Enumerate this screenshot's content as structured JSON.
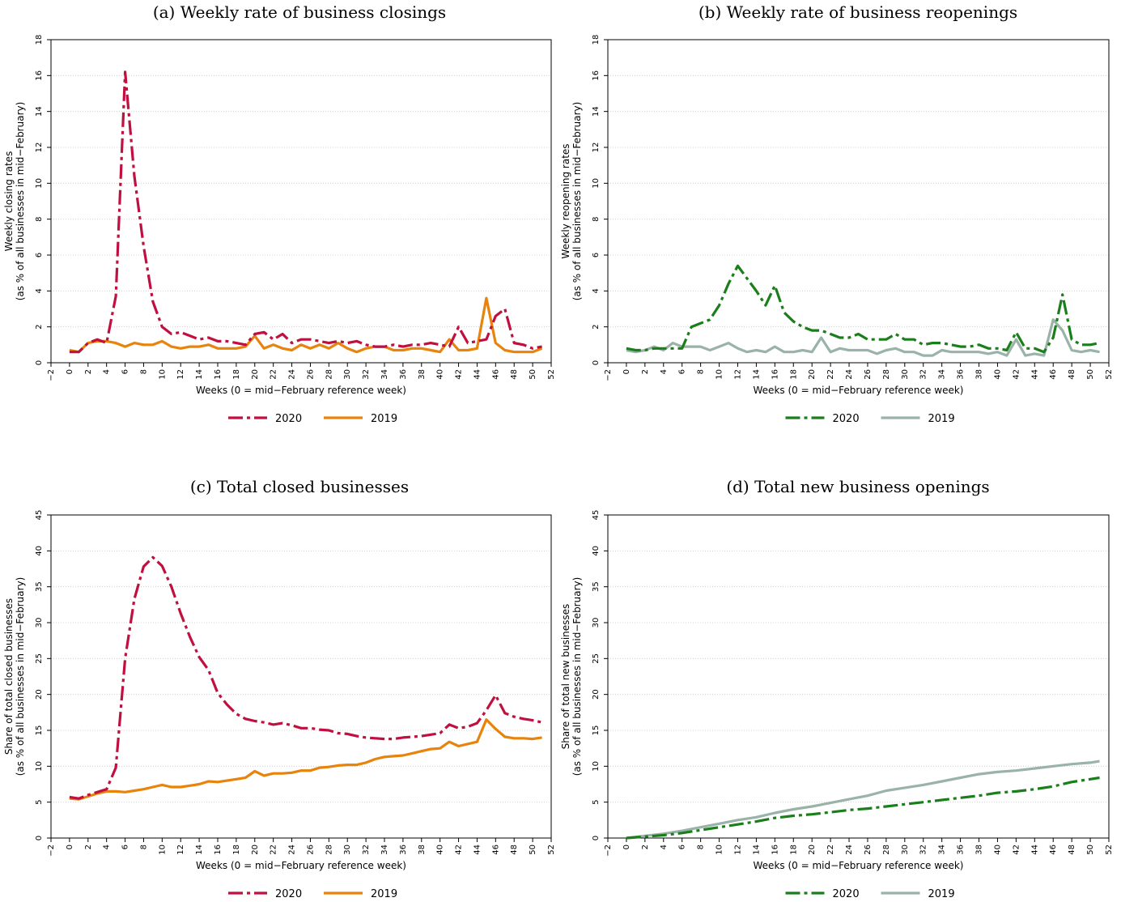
{
  "chart_data": [
    {
      "type": "line",
      "title": "(a) Weekly rate of business closings",
      "xlabel": "Weeks (0 = mid−February reference week)",
      "ylabel": [
        "Weekly closing rates",
        "(as % of all businesses in mid−February)"
      ],
      "xlim": [
        -2,
        52
      ],
      "ylim": [
        0,
        18
      ],
      "xticks": [
        -2,
        0,
        2,
        4,
        6,
        8,
        10,
        12,
        14,
        16,
        18,
        20,
        22,
        24,
        26,
        28,
        30,
        32,
        34,
        36,
        38,
        40,
        42,
        44,
        46,
        48,
        50,
        52
      ],
      "yticks": [
        0,
        2,
        4,
        6,
        8,
        10,
        12,
        14,
        16,
        18
      ],
      "grid": "horizontal dotted",
      "legend": "bottom",
      "series": [
        {
          "name": "2020",
          "color": "#c0103f",
          "dash": "longdash-dot",
          "x": [
            0,
            1,
            2,
            3,
            4,
            5,
            6,
            7,
            8,
            9,
            10,
            11,
            12,
            13,
            14,
            15,
            16,
            17,
            18,
            19,
            20,
            21,
            22,
            23,
            24,
            25,
            26,
            27,
            28,
            29,
            30,
            31,
            32,
            33,
            34,
            35,
            36,
            37,
            38,
            39,
            40,
            41,
            42,
            43,
            44,
            45,
            46,
            47,
            48,
            49,
            50,
            51
          ],
          "y": [
            0.6,
            0.6,
            1.1,
            1.3,
            1.1,
            3.7,
            16.2,
            10.4,
            6.5,
            3.4,
            2.0,
            1.6,
            1.7,
            1.5,
            1.3,
            1.4,
            1.2,
            1.2,
            1.1,
            1.0,
            1.6,
            1.7,
            1.3,
            1.6,
            1.1,
            1.3,
            1.3,
            1.2,
            1.1,
            1.2,
            1.1,
            1.2,
            1.0,
            0.9,
            0.9,
            1.0,
            0.9,
            1.0,
            1.0,
            1.1,
            1.0,
            0.9,
            2.0,
            1.1,
            1.2,
            1.3,
            2.6,
            3.0,
            1.1,
            1.0,
            0.8,
            0.9
          ]
        },
        {
          "name": "2019",
          "color": "#e8830c",
          "dash": "solid",
          "x": [
            0,
            1,
            2,
            3,
            4,
            5,
            6,
            7,
            8,
            9,
            10,
            11,
            12,
            13,
            14,
            15,
            16,
            17,
            18,
            19,
            20,
            21,
            22,
            23,
            24,
            25,
            26,
            27,
            28,
            29,
            30,
            31,
            32,
            33,
            34,
            35,
            36,
            37,
            38,
            39,
            40,
            41,
            42,
            43,
            44,
            45,
            46,
            47,
            48,
            49,
            50,
            51
          ],
          "y": [
            0.7,
            0.6,
            1.1,
            1.2,
            1.2,
            1.1,
            0.9,
            1.1,
            1.0,
            1.0,
            1.2,
            0.9,
            0.8,
            0.9,
            0.9,
            1.0,
            0.8,
            0.8,
            0.8,
            0.9,
            1.5,
            0.8,
            1.0,
            0.8,
            0.7,
            1.0,
            0.8,
            1.0,
            0.8,
            1.1,
            0.8,
            0.6,
            0.8,
            0.9,
            0.9,
            0.7,
            0.7,
            0.8,
            0.8,
            0.7,
            0.6,
            1.3,
            0.7,
            0.7,
            0.8,
            3.6,
            1.1,
            0.7,
            0.6,
            0.6,
            0.6,
            0.8
          ]
        }
      ]
    },
    {
      "type": "line",
      "title": "(b) Weekly rate of business reopenings",
      "xlabel": "Weeks (0 = mid−February reference week)",
      "ylabel": [
        "Weekly reopening rates",
        "(as % of all businesses in mid−February)"
      ],
      "xlim": [
        -2,
        52
      ],
      "ylim": [
        0,
        18
      ],
      "xticks": [
        -2,
        0,
        2,
        4,
        6,
        8,
        10,
        12,
        14,
        16,
        18,
        20,
        22,
        24,
        26,
        28,
        30,
        32,
        34,
        36,
        38,
        40,
        42,
        44,
        46,
        48,
        50,
        52
      ],
      "yticks": [
        0,
        2,
        4,
        6,
        8,
        10,
        12,
        14,
        16,
        18
      ],
      "grid": "horizontal dotted",
      "legend": "bottom",
      "series": [
        {
          "name": "2020",
          "color": "#1a7f1a",
          "dash": "longdash-dot",
          "x": [
            0,
            1,
            2,
            3,
            4,
            5,
            6,
            7,
            8,
            9,
            10,
            11,
            12,
            13,
            14,
            15,
            16,
            17,
            18,
            19,
            20,
            21,
            22,
            23,
            24,
            25,
            26,
            27,
            28,
            29,
            30,
            31,
            32,
            33,
            34,
            35,
            36,
            37,
            38,
            39,
            40,
            41,
            42,
            43,
            44,
            45,
            46,
            47,
            48,
            49,
            50,
            51
          ],
          "y": [
            0.8,
            0.7,
            0.7,
            0.8,
            0.8,
            0.8,
            0.8,
            2.0,
            2.2,
            2.4,
            3.2,
            4.4,
            5.4,
            4.7,
            4.0,
            3.2,
            4.3,
            2.8,
            2.3,
            2.0,
            1.8,
            1.8,
            1.6,
            1.4,
            1.4,
            1.6,
            1.3,
            1.3,
            1.3,
            1.6,
            1.3,
            1.3,
            1.0,
            1.1,
            1.1,
            1.0,
            0.9,
            0.9,
            1.0,
            0.8,
            0.8,
            0.7,
            1.7,
            0.8,
            0.8,
            0.6,
            1.4,
            3.8,
            1.3,
            1.0,
            1.0,
            1.1
          ]
        },
        {
          "name": "2019",
          "color": "#9ab3a8",
          "dash": "solid",
          "x": [
            0,
            1,
            2,
            3,
            4,
            5,
            6,
            7,
            8,
            9,
            10,
            11,
            12,
            13,
            14,
            15,
            16,
            17,
            18,
            19,
            20,
            21,
            22,
            23,
            24,
            25,
            26,
            27,
            28,
            29,
            30,
            31,
            32,
            33,
            34,
            35,
            36,
            37,
            38,
            39,
            40,
            41,
            42,
            43,
            44,
            45,
            46,
            47,
            48,
            49,
            50,
            51
          ],
          "y": [
            0.7,
            0.6,
            0.7,
            0.9,
            0.7,
            1.1,
            0.9,
            0.9,
            0.9,
            0.7,
            0.9,
            1.1,
            0.8,
            0.6,
            0.7,
            0.6,
            0.9,
            0.6,
            0.6,
            0.7,
            0.6,
            1.4,
            0.6,
            0.8,
            0.7,
            0.7,
            0.7,
            0.5,
            0.7,
            0.8,
            0.6,
            0.6,
            0.4,
            0.4,
            0.7,
            0.6,
            0.6,
            0.6,
            0.6,
            0.5,
            0.6,
            0.4,
            1.3,
            0.4,
            0.5,
            0.4,
            2.4,
            1.8,
            0.7,
            0.6,
            0.7,
            0.6
          ]
        }
      ]
    },
    {
      "type": "line",
      "title": "(c) Total closed businesses",
      "xlabel": "Weeks (0 = mid−February reference week)",
      "ylabel": [
        "Share of total closed businesses",
        "(as % of all businesses in mid−February)"
      ],
      "xlim": [
        -2,
        52
      ],
      "ylim": [
        0,
        45
      ],
      "xticks": [
        -2,
        0,
        2,
        4,
        6,
        8,
        10,
        12,
        14,
        16,
        18,
        20,
        22,
        24,
        26,
        28,
        30,
        32,
        34,
        36,
        38,
        40,
        42,
        44,
        46,
        48,
        50,
        52
      ],
      "yticks": [
        0,
        5,
        10,
        15,
        20,
        25,
        30,
        35,
        40,
        45
      ],
      "grid": "horizontal dotted",
      "legend": "bottom",
      "series": [
        {
          "name": "2020",
          "color": "#c0103f",
          "dash": "longdash-dot",
          "x": [
            0,
            1,
            2,
            3,
            4,
            5,
            6,
            7,
            8,
            9,
            10,
            11,
            12,
            13,
            14,
            15,
            16,
            17,
            18,
            19,
            20,
            21,
            22,
            23,
            24,
            25,
            26,
            27,
            28,
            29,
            30,
            31,
            32,
            33,
            34,
            35,
            36,
            37,
            38,
            39,
            40,
            41,
            42,
            43,
            44,
            45,
            46,
            47,
            48,
            49,
            50,
            51
          ],
          "y": [
            5.7,
            5.5,
            6.0,
            6.4,
            6.8,
            9.8,
            25.0,
            33.3,
            37.8,
            39.1,
            37.9,
            35.0,
            31.3,
            28.0,
            25.2,
            23.4,
            20.2,
            18.6,
            17.3,
            16.6,
            16.3,
            16.1,
            15.8,
            16.0,
            15.7,
            15.3,
            15.3,
            15.1,
            15.0,
            14.6,
            14.5,
            14.2,
            14.0,
            13.9,
            13.8,
            13.8,
            14.0,
            14.1,
            14.2,
            14.4,
            14.6,
            15.8,
            15.3,
            15.5,
            16.0,
            17.8,
            19.9,
            17.4,
            16.9,
            16.6,
            16.4,
            16.1
          ]
        },
        {
          "name": "2019",
          "color": "#e8830c",
          "dash": "solid",
          "x": [
            0,
            1,
            2,
            3,
            4,
            5,
            6,
            7,
            8,
            9,
            10,
            11,
            12,
            13,
            14,
            15,
            16,
            17,
            18,
            19,
            20,
            21,
            22,
            23,
            24,
            25,
            26,
            27,
            28,
            29,
            30,
            31,
            32,
            33,
            34,
            35,
            36,
            37,
            38,
            39,
            40,
            41,
            42,
            43,
            44,
            45,
            46,
            47,
            48,
            49,
            50,
            51
          ],
          "y": [
            5.5,
            5.4,
            5.8,
            6.2,
            6.5,
            6.5,
            6.4,
            6.6,
            6.8,
            7.1,
            7.4,
            7.1,
            7.1,
            7.3,
            7.5,
            7.9,
            7.8,
            8.0,
            8.2,
            8.4,
            9.3,
            8.7,
            9.0,
            9.0,
            9.1,
            9.4,
            9.4,
            9.8,
            9.9,
            10.1,
            10.2,
            10.2,
            10.5,
            11.0,
            11.3,
            11.4,
            11.5,
            11.8,
            12.1,
            12.4,
            12.5,
            13.4,
            12.8,
            13.1,
            13.4,
            16.5,
            15.2,
            14.1,
            13.9,
            13.9,
            13.8,
            14.0
          ]
        }
      ]
    },
    {
      "type": "line",
      "title": "(d) Total new business openings",
      "xlabel": "Weeks (0 = mid−February reference week)",
      "ylabel": [
        "Share of total new businesses",
        "(as % of all businesses in mid−February)"
      ],
      "xlim": [
        -2,
        52
      ],
      "ylim": [
        0,
        45
      ],
      "xticks": [
        -2,
        0,
        2,
        4,
        6,
        8,
        10,
        12,
        14,
        16,
        18,
        20,
        22,
        24,
        26,
        28,
        30,
        32,
        34,
        36,
        38,
        40,
        42,
        44,
        46,
        48,
        50,
        52
      ],
      "yticks": [
        0,
        5,
        10,
        15,
        20,
        25,
        30,
        35,
        40,
        45
      ],
      "grid": "horizontal dotted",
      "legend": "bottom",
      "series": [
        {
          "name": "2020",
          "color": "#1a7f1a",
          "dash": "longdash-dot",
          "x": [
            0,
            2,
            4,
            6,
            8,
            10,
            12,
            14,
            16,
            18,
            20,
            22,
            24,
            26,
            28,
            30,
            32,
            34,
            36,
            38,
            40,
            42,
            44,
            46,
            48,
            50,
            51
          ],
          "y": [
            0.0,
            0.2,
            0.4,
            0.7,
            1.1,
            1.5,
            1.9,
            2.3,
            2.8,
            3.1,
            3.3,
            3.6,
            3.9,
            4.1,
            4.4,
            4.7,
            5.0,
            5.3,
            5.6,
            5.9,
            6.3,
            6.5,
            6.8,
            7.2,
            7.8,
            8.2,
            8.4
          ]
        },
        {
          "name": "2019",
          "color": "#9ab3a8",
          "dash": "solid",
          "x": [
            0,
            2,
            4,
            6,
            8,
            10,
            12,
            14,
            16,
            18,
            20,
            22,
            24,
            26,
            28,
            30,
            32,
            34,
            36,
            38,
            40,
            42,
            44,
            46,
            48,
            50,
            51
          ],
          "y": [
            0.0,
            0.3,
            0.6,
            1.0,
            1.5,
            2.0,
            2.5,
            2.9,
            3.5,
            4.0,
            4.4,
            4.9,
            5.4,
            5.9,
            6.6,
            7.0,
            7.4,
            7.9,
            8.4,
            8.9,
            9.2,
            9.4,
            9.7,
            10.0,
            10.3,
            10.5,
            10.7
          ]
        }
      ]
    }
  ]
}
